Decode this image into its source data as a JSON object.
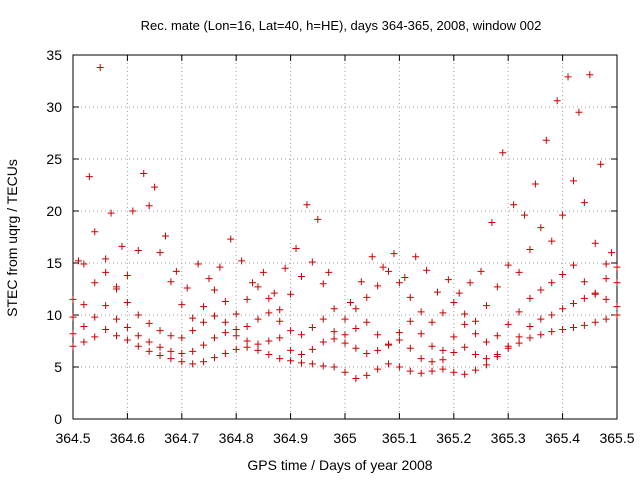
{
  "chart_data": {
    "type": "scatter",
    "title": "Rec. mate (Lon=16, Lat=40, h=HE), days 364-365, 2008, window 002",
    "xlabel": "GPS time / Days of year 2008",
    "ylabel": "STEC from uqrg / TECUs",
    "xlim": [
      364.5,
      365.5
    ],
    "ylim": [
      0,
      35
    ],
    "xticks": [
      "364.5",
      "364.6",
      "364.7",
      "364.8",
      "364.9",
      "365",
      "365.1",
      "365.2",
      "365.3",
      "365.4",
      "365.5"
    ],
    "yticks": [
      "0",
      "5",
      "10",
      "15",
      "20",
      "25",
      "30",
      "35"
    ],
    "grid": true,
    "marker": "plus",
    "color": "#cc0000",
    "series": [
      {
        "points": [
          [
            364.5,
            7.0
          ],
          [
            364.52,
            7.4
          ],
          [
            364.54,
            7.9
          ],
          [
            364.56,
            8.6
          ],
          [
            364.58,
            8.0
          ],
          [
            364.6,
            7.6
          ],
          [
            364.62,
            7.0
          ],
          [
            364.64,
            6.5
          ],
          [
            364.66,
            6.1
          ],
          [
            364.68,
            5.8
          ],
          [
            364.7,
            5.5
          ],
          [
            364.72,
            5.3
          ],
          [
            364.74,
            5.5
          ],
          [
            364.76,
            5.9
          ],
          [
            364.78,
            6.3
          ],
          [
            364.8,
            6.7
          ],
          [
            364.82,
            6.9
          ],
          [
            364.84,
            6.6
          ],
          [
            364.86,
            6.2
          ],
          [
            364.88,
            5.8
          ],
          [
            364.9,
            5.6
          ],
          [
            364.92,
            5.4
          ],
          [
            364.94,
            5.3
          ],
          [
            364.96,
            5.1
          ],
          [
            364.98,
            5.0
          ],
          [
            365.0,
            4.5
          ],
          [
            365.02,
            3.9
          ],
          [
            365.04,
            4.2
          ],
          [
            365.06,
            4.8
          ],
          [
            365.08,
            5.3
          ],
          [
            365.1,
            5.0
          ],
          [
            365.12,
            4.6
          ],
          [
            365.14,
            4.4
          ],
          [
            365.16,
            4.6
          ],
          [
            365.18,
            4.8
          ],
          [
            365.2,
            4.5
          ],
          [
            365.22,
            4.3
          ],
          [
            365.24,
            4.7
          ],
          [
            365.26,
            5.2
          ],
          [
            365.28,
            6.0
          ],
          [
            365.3,
            6.8
          ],
          [
            365.32,
            7.3
          ],
          [
            365.34,
            7.8
          ],
          [
            365.36,
            8.1
          ],
          [
            365.38,
            8.4
          ],
          [
            365.4,
            8.6
          ],
          [
            365.42,
            8.8
          ],
          [
            365.44,
            9.0
          ],
          [
            365.46,
            9.3
          ],
          [
            365.48,
            9.6
          ],
          [
            365.5,
            10.0
          ]
        ]
      },
      {
        "points": [
          [
            364.5,
            8.2
          ],
          [
            364.52,
            8.9
          ],
          [
            364.54,
            9.8
          ],
          [
            364.56,
            10.9
          ],
          [
            364.58,
            9.6
          ],
          [
            364.6,
            8.8
          ],
          [
            364.62,
            8.0
          ],
          [
            364.64,
            7.4
          ],
          [
            364.66,
            6.9
          ],
          [
            364.68,
            6.5
          ],
          [
            364.7,
            6.3
          ],
          [
            364.72,
            6.5
          ],
          [
            364.74,
            7.1
          ],
          [
            364.76,
            7.8
          ],
          [
            364.78,
            8.3
          ],
          [
            364.8,
            8.0
          ],
          [
            364.82,
            7.5
          ],
          [
            364.84,
            7.2
          ],
          [
            364.86,
            7.5
          ],
          [
            364.88,
            7.8
          ],
          [
            364.9,
            6.6
          ],
          [
            364.92,
            6.2
          ],
          [
            364.94,
            6.7
          ],
          [
            364.96,
            7.4
          ],
          [
            364.98,
            7.7
          ],
          [
            365.0,
            7.3
          ],
          [
            365.02,
            6.8
          ],
          [
            365.04,
            6.3
          ],
          [
            365.06,
            6.6
          ],
          [
            365.08,
            7.1
          ],
          [
            365.1,
            7.6
          ],
          [
            365.12,
            6.8
          ],
          [
            365.14,
            5.8
          ],
          [
            365.16,
            5.5
          ],
          [
            365.18,
            5.7
          ],
          [
            365.2,
            6.4
          ],
          [
            365.22,
            6.9
          ],
          [
            365.24,
            6.2
          ],
          [
            365.26,
            5.8
          ],
          [
            365.28,
            6.2
          ],
          [
            365.3,
            7.0
          ],
          [
            365.32,
            7.9
          ],
          [
            365.34,
            8.9
          ],
          [
            365.36,
            9.6
          ],
          [
            365.38,
            10.0
          ],
          [
            365.4,
            10.6
          ],
          [
            365.42,
            11.1
          ],
          [
            365.44,
            11.6
          ],
          [
            365.46,
            12.0
          ],
          [
            365.48,
            11.5
          ],
          [
            365.5,
            10.8
          ]
        ]
      },
      {
        "points": [
          [
            364.5,
            9.8
          ],
          [
            364.52,
            11.0
          ],
          [
            364.54,
            13.1
          ],
          [
            364.56,
            15.4
          ],
          [
            364.58,
            12.7
          ],
          [
            364.6,
            11.2
          ],
          [
            364.62,
            10.0
          ],
          [
            364.64,
            9.2
          ],
          [
            364.66,
            8.5
          ],
          [
            364.68,
            8.0
          ],
          [
            364.7,
            7.8
          ],
          [
            364.72,
            8.5
          ],
          [
            364.74,
            9.3
          ],
          [
            364.76,
            9.9
          ],
          [
            364.78,
            9.3
          ],
          [
            364.8,
            8.6
          ],
          [
            364.82,
            8.9
          ],
          [
            364.84,
            9.6
          ],
          [
            364.86,
            10.2
          ],
          [
            364.88,
            9.4
          ],
          [
            364.9,
            8.5
          ],
          [
            364.92,
            8.1
          ],
          [
            364.94,
            8.8
          ],
          [
            364.96,
            9.6
          ],
          [
            364.98,
            8.4
          ],
          [
            365.0,
            8.1
          ],
          [
            365.02,
            8.7
          ],
          [
            365.04,
            9.3
          ],
          [
            365.06,
            8.1
          ],
          [
            365.08,
            7.2
          ],
          [
            365.1,
            8.3
          ],
          [
            365.12,
            9.4
          ],
          [
            365.14,
            8.2
          ],
          [
            365.16,
            7.0
          ],
          [
            365.18,
            6.6
          ],
          [
            365.2,
            7.9
          ],
          [
            365.22,
            9.1
          ],
          [
            365.24,
            8.2
          ],
          [
            365.26,
            7.4
          ],
          [
            365.28,
            8.0
          ],
          [
            365.3,
            9.1
          ],
          [
            365.32,
            10.3
          ],
          [
            365.34,
            11.6
          ],
          [
            365.36,
            12.4
          ],
          [
            365.38,
            13.1
          ],
          [
            365.4,
            13.9
          ],
          [
            365.42,
            14.8
          ],
          [
            365.44,
            13.2
          ],
          [
            365.46,
            12.1
          ],
          [
            365.48,
            13.5
          ],
          [
            365.5,
            14.6
          ]
        ]
      },
      {
        "points": [
          [
            364.5,
            11.5
          ],
          [
            364.52,
            14.9
          ],
          [
            364.54,
            18.0
          ],
          [
            364.56,
            14.1
          ],
          [
            364.58,
            12.5
          ],
          [
            364.6,
            13.8
          ],
          [
            364.62,
            16.2
          ],
          [
            364.64,
            20.5
          ],
          [
            364.66,
            16.0
          ],
          [
            364.68,
            13.2
          ],
          [
            364.7,
            11.0
          ],
          [
            364.72,
            9.7
          ],
          [
            364.74,
            10.8
          ],
          [
            364.76,
            12.4
          ],
          [
            364.78,
            11.3
          ],
          [
            364.8,
            10.1
          ],
          [
            364.82,
            11.5
          ],
          [
            364.84,
            12.7
          ],
          [
            364.86,
            11.6
          ],
          [
            364.88,
            10.5
          ],
          [
            364.9,
            12.0
          ],
          [
            364.92,
            13.7
          ],
          [
            364.94,
            15.1
          ],
          [
            364.96,
            13.0
          ],
          [
            364.98,
            10.6
          ],
          [
            365.0,
            9.6
          ],
          [
            365.02,
            10.6
          ],
          [
            365.04,
            11.7
          ],
          [
            365.06,
            12.8
          ],
          [
            365.08,
            14.2
          ],
          [
            365.1,
            13.1
          ],
          [
            365.12,
            11.7
          ],
          [
            365.14,
            10.3
          ],
          [
            365.16,
            9.3
          ],
          [
            365.18,
            10.2
          ],
          [
            365.2,
            11.2
          ],
          [
            365.22,
            10.1
          ],
          [
            365.24,
            9.4
          ],
          [
            365.26,
            10.9
          ],
          [
            365.28,
            12.7
          ],
          [
            365.3,
            14.8
          ],
          [
            365.32,
            14.1
          ],
          [
            365.34,
            16.3
          ],
          [
            365.36,
            18.4
          ],
          [
            365.38,
            17.1
          ],
          [
            365.4,
            19.6
          ],
          [
            365.42,
            22.9
          ],
          [
            365.44,
            20.8
          ],
          [
            365.46,
            16.9
          ],
          [
            365.48,
            14.9
          ],
          [
            365.5,
            13.1
          ]
        ]
      },
      {
        "points": [
          [
            364.51,
            15.2
          ],
          [
            364.53,
            23.3
          ],
          [
            364.55,
            33.8
          ],
          [
            364.57,
            19.8
          ],
          [
            364.59,
            16.6
          ],
          [
            364.61,
            20.0
          ],
          [
            364.63,
            23.6
          ],
          [
            364.65,
            22.3
          ],
          [
            364.67,
            17.6
          ],
          [
            364.69,
            14.2
          ],
          [
            364.71,
            12.6
          ],
          [
            364.73,
            14.9
          ],
          [
            364.75,
            13.5
          ],
          [
            364.77,
            14.6
          ],
          [
            364.79,
            17.3
          ],
          [
            364.81,
            15.2
          ],
          [
            364.83,
            13.1
          ],
          [
            364.85,
            14.1
          ],
          [
            364.87,
            12.1
          ],
          [
            364.89,
            14.5
          ],
          [
            364.91,
            16.4
          ],
          [
            364.93,
            20.6
          ],
          [
            364.95,
            19.2
          ],
          [
            364.97,
            14.1
          ],
          [
            365.01,
            11.2
          ],
          [
            365.03,
            13.2
          ],
          [
            365.05,
            15.6
          ],
          [
            365.07,
            14.6
          ],
          [
            365.09,
            15.9
          ],
          [
            365.11,
            13.6
          ],
          [
            365.13,
            15.6
          ],
          [
            365.15,
            14.3
          ],
          [
            365.17,
            12.2
          ],
          [
            365.19,
            13.4
          ],
          [
            365.21,
            12.1
          ],
          [
            365.23,
            13.1
          ],
          [
            365.25,
            14.2
          ],
          [
            365.27,
            18.9
          ],
          [
            365.29,
            25.6
          ],
          [
            365.31,
            20.6
          ],
          [
            365.33,
            19.6
          ],
          [
            365.35,
            22.6
          ],
          [
            365.37,
            26.8
          ],
          [
            365.39,
            30.6
          ],
          [
            365.41,
            32.9
          ],
          [
            365.43,
            29.5
          ],
          [
            365.45,
            33.1
          ],
          [
            365.47,
            24.5
          ],
          [
            365.49,
            16.0
          ]
        ]
      }
    ]
  }
}
